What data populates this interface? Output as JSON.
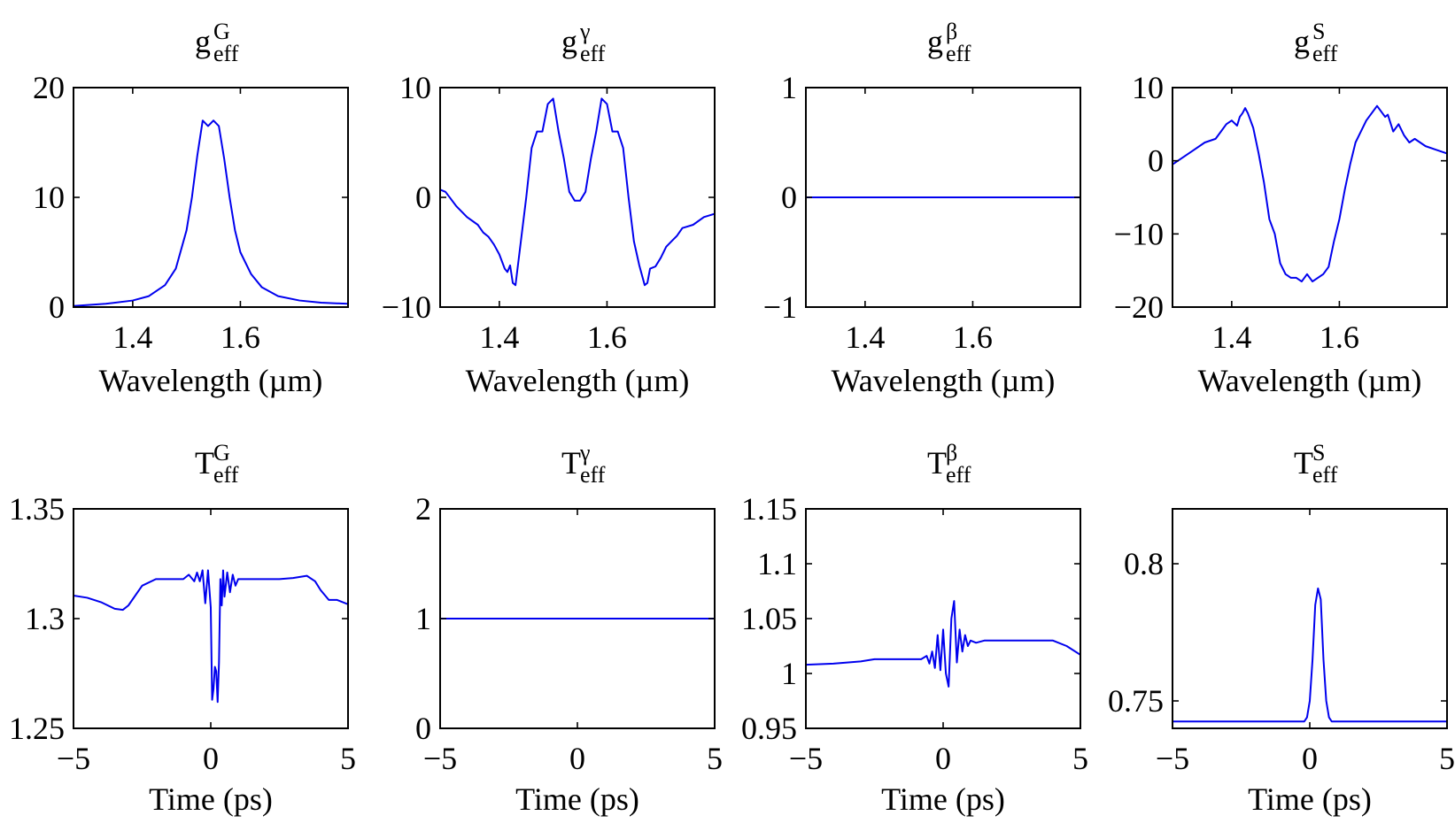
{
  "figure_title": "",
  "chart_data": [
    {
      "type": "line",
      "title": {
        "base": "g",
        "sup": "G",
        "sub": "eff"
      },
      "xlabel": "Wavelength (µm)",
      "ylabel": "",
      "xlim": [
        1.29,
        1.8
      ],
      "ylim": [
        0,
        20
      ],
      "xticks": [
        1.4,
        1.6
      ],
      "xtick_labels": [
        "1.4",
        "1.6"
      ],
      "yticks": [
        0,
        10,
        20
      ],
      "ytick_labels": [
        "0",
        "10",
        "20"
      ],
      "series": [
        {
          "name": "gG_eff",
          "color": "#0000ee",
          "x": [
            1.29,
            1.35,
            1.4,
            1.43,
            1.46,
            1.48,
            1.5,
            1.51,
            1.52,
            1.53,
            1.54,
            1.55,
            1.56,
            1.57,
            1.58,
            1.59,
            1.6,
            1.62,
            1.64,
            1.67,
            1.71,
            1.75,
            1.8
          ],
          "y": [
            0.1,
            0.3,
            0.6,
            1.0,
            2.0,
            3.5,
            7.0,
            10.0,
            13.8,
            17.0,
            16.5,
            17.0,
            16.5,
            13.5,
            10.0,
            7.0,
            5.0,
            3.0,
            1.8,
            1.0,
            0.6,
            0.4,
            0.3
          ]
        }
      ]
    },
    {
      "type": "line",
      "title": {
        "base": "g",
        "sup": "γ",
        "sub": "eff"
      },
      "xlabel": "Wavelength (µm)",
      "ylabel": "",
      "xlim": [
        1.29,
        1.8
      ],
      "ylim": [
        -10,
        10
      ],
      "xticks": [
        1.4,
        1.6
      ],
      "xtick_labels": [
        "1.4",
        "1.6"
      ],
      "yticks": [
        -10,
        0,
        10
      ],
      "ytick_labels": [
        "−10",
        "0",
        "10"
      ],
      "series": [
        {
          "name": "ggamma_eff",
          "color": "#0000ee",
          "x": [
            1.29,
            1.3,
            1.32,
            1.34,
            1.36,
            1.37,
            1.38,
            1.39,
            1.4,
            1.41,
            1.415,
            1.42,
            1.425,
            1.43,
            1.44,
            1.45,
            1.46,
            1.47,
            1.48,
            1.49,
            1.5,
            1.51,
            1.52,
            1.53,
            1.54,
            1.55,
            1.56,
            1.57,
            1.58,
            1.59,
            1.6,
            1.61,
            1.62,
            1.63,
            1.64,
            1.65,
            1.66,
            1.67,
            1.675,
            1.68,
            1.69,
            1.7,
            1.71,
            1.72,
            1.73,
            1.74,
            1.76,
            1.78,
            1.8
          ],
          "y": [
            0.7,
            0.5,
            -0.8,
            -1.8,
            -2.5,
            -3.2,
            -3.6,
            -4.3,
            -5.2,
            -6.5,
            -6.8,
            -6.2,
            -7.8,
            -8.0,
            -4.0,
            0.0,
            4.5,
            6.0,
            6.0,
            8.5,
            9.0,
            6.0,
            3.5,
            0.5,
            -0.3,
            -0.3,
            0.5,
            3.5,
            6.0,
            9.0,
            8.5,
            6.0,
            6.0,
            4.5,
            0.0,
            -4.0,
            -6.2,
            -8.0,
            -7.8,
            -6.5,
            -6.3,
            -5.5,
            -4.5,
            -4.0,
            -3.5,
            -2.8,
            -2.5,
            -1.8,
            -1.5
          ]
        }
      ]
    },
    {
      "type": "line",
      "title": {
        "base": "g",
        "sup": "β",
        "sub": "eff"
      },
      "xlabel": "Wavelength (µm)",
      "ylabel": "",
      "xlim": [
        1.29,
        1.8
      ],
      "ylim": [
        -1,
        1
      ],
      "xticks": [
        1.4,
        1.6
      ],
      "xtick_labels": [
        "1.4",
        "1.6"
      ],
      "yticks": [
        -1,
        0,
        1
      ],
      "ytick_labels": [
        "−1",
        "0",
        "1"
      ],
      "series": [
        {
          "name": "gbeta_eff",
          "color": "#0000ee",
          "x": [
            1.29,
            1.8
          ],
          "y": [
            0,
            0
          ]
        }
      ]
    },
    {
      "type": "line",
      "title": {
        "base": "g",
        "sup": "S",
        "sub": "eff"
      },
      "xlabel": "Wavelength (µm)",
      "ylabel": "",
      "xlim": [
        1.29,
        1.8
      ],
      "ylim": [
        -20,
        10
      ],
      "xticks": [
        1.4,
        1.6
      ],
      "xtick_labels": [
        "1.4",
        "1.6"
      ],
      "yticks": [
        -20,
        -10,
        0,
        10
      ],
      "ytick_labels": [
        "−20",
        "−10",
        "0",
        "10"
      ],
      "series": [
        {
          "name": "gS_eff",
          "color": "#0000ee",
          "x": [
            1.29,
            1.31,
            1.33,
            1.35,
            1.37,
            1.38,
            1.39,
            1.4,
            1.41,
            1.415,
            1.42,
            1.425,
            1.43,
            1.44,
            1.45,
            1.46,
            1.47,
            1.48,
            1.49,
            1.5,
            1.51,
            1.52,
            1.53,
            1.54,
            1.55,
            1.56,
            1.57,
            1.58,
            1.59,
            1.6,
            1.61,
            1.62,
            1.63,
            1.64,
            1.65,
            1.66,
            1.67,
            1.68,
            1.685,
            1.69,
            1.7,
            1.71,
            1.72,
            1.73,
            1.74,
            1.76,
            1.78,
            1.8
          ],
          "y": [
            -0.5,
            0.5,
            1.5,
            2.5,
            3.0,
            4.0,
            5.0,
            5.5,
            4.8,
            6.0,
            6.5,
            7.2,
            6.5,
            4.5,
            1.0,
            -3.0,
            -8.0,
            -10.0,
            -14.0,
            -15.5,
            -16.0,
            -16.0,
            -16.5,
            -15.5,
            -16.5,
            -16.0,
            -15.5,
            -14.5,
            -11.0,
            -8.0,
            -4.0,
            -0.5,
            2.5,
            4.0,
            5.5,
            6.5,
            7.5,
            6.5,
            6.0,
            6.3,
            4.0,
            5.0,
            3.5,
            2.5,
            3.0,
            2.0,
            1.5,
            1.0
          ]
        }
      ]
    },
    {
      "type": "line",
      "title": {
        "base": "T",
        "sup": "G",
        "sub": "eff"
      },
      "xlabel": "Time (ps)",
      "ylabel": "",
      "xlim": [
        -5,
        5
      ],
      "ylim": [
        1.25,
        1.35
      ],
      "xticks": [
        -5,
        0,
        5
      ],
      "xtick_labels": [
        "−5",
        "0",
        "5"
      ],
      "yticks": [
        1.25,
        1.3,
        1.35
      ],
      "ytick_labels": [
        "1.25",
        "1.3",
        "1.35"
      ],
      "series": [
        {
          "name": "TG_eff",
          "color": "#0000ee",
          "x": [
            -5.0,
            -4.5,
            -4.0,
            -3.5,
            -3.2,
            -3.0,
            -2.5,
            -2.0,
            -1.5,
            -1.0,
            -0.8,
            -0.6,
            -0.5,
            -0.4,
            -0.3,
            -0.2,
            -0.1,
            0.0,
            0.05,
            0.1,
            0.15,
            0.2,
            0.25,
            0.3,
            0.35,
            0.4,
            0.45,
            0.5,
            0.6,
            0.7,
            0.8,
            0.9,
            1.0,
            1.2,
            1.5,
            2.0,
            2.5,
            3.0,
            3.5,
            3.8,
            4.0,
            4.3,
            4.6,
            5.0
          ],
          "y": [
            1.3105,
            1.3095,
            1.3075,
            1.3045,
            1.304,
            1.306,
            1.315,
            1.318,
            1.318,
            1.318,
            1.32,
            1.317,
            1.321,
            1.317,
            1.322,
            1.307,
            1.322,
            1.305,
            1.263,
            1.268,
            1.278,
            1.276,
            1.262,
            1.28,
            1.318,
            1.306,
            1.322,
            1.31,
            1.321,
            1.312,
            1.32,
            1.315,
            1.318,
            1.318,
            1.318,
            1.318,
            1.318,
            1.3185,
            1.3195,
            1.317,
            1.313,
            1.3085,
            1.3085,
            1.3065
          ]
        }
      ]
    },
    {
      "type": "line",
      "title": {
        "base": "T",
        "sup": "γ",
        "sub": "eff"
      },
      "xlabel": "Time (ps)",
      "ylabel": "",
      "xlim": [
        -5,
        5
      ],
      "ylim": [
        0,
        2
      ],
      "xticks": [
        -5,
        0,
        5
      ],
      "xtick_labels": [
        "−5",
        "0",
        "5"
      ],
      "yticks": [
        0,
        1,
        2
      ],
      "ytick_labels": [
        "0",
        "1",
        "2"
      ],
      "series": [
        {
          "name": "Tgamma_eff",
          "color": "#0000ee",
          "x": [
            -5,
            5
          ],
          "y": [
            1,
            1
          ]
        }
      ]
    },
    {
      "type": "line",
      "title": {
        "base": "T",
        "sup": "β",
        "sub": "eff"
      },
      "xlabel": "Time (ps)",
      "ylabel": "",
      "xlim": [
        -5,
        5
      ],
      "ylim": [
        0.95,
        1.15
      ],
      "xticks": [
        -5,
        0,
        5
      ],
      "xtick_labels": [
        "−5",
        "0",
        "5"
      ],
      "yticks": [
        0.95,
        1.0,
        1.05,
        1.1,
        1.15
      ],
      "ytick_labels": [
        "0.95",
        "1",
        "1.05",
        "1.1",
        "1.15"
      ],
      "series": [
        {
          "name": "Tbeta_eff",
          "color": "#0000ee",
          "x": [
            -5.0,
            -4.0,
            -3.0,
            -2.5,
            -1.5,
            -1.0,
            -0.8,
            -0.6,
            -0.5,
            -0.4,
            -0.3,
            -0.2,
            -0.1,
            0.0,
            0.1,
            0.2,
            0.3,
            0.4,
            0.5,
            0.6,
            0.7,
            0.8,
            0.9,
            1.0,
            1.2,
            1.5,
            2.0,
            3.0,
            3.5,
            4.0,
            4.5,
            5.0
          ],
          "y": [
            1.008,
            1.009,
            1.011,
            1.013,
            1.013,
            1.013,
            1.013,
            1.016,
            1.009,
            1.02,
            1.005,
            1.035,
            1.003,
            1.04,
            1.0,
            0.988,
            1.05,
            1.066,
            1.01,
            1.04,
            1.02,
            1.035,
            1.025,
            1.03,
            1.028,
            1.03,
            1.03,
            1.03,
            1.03,
            1.03,
            1.025,
            1.017
          ]
        }
      ]
    },
    {
      "type": "line",
      "title": {
        "base": "T",
        "sup": "S",
        "sub": "eff"
      },
      "xlabel": "Time (ps)",
      "ylabel": "",
      "xlim": [
        -5,
        5
      ],
      "ylim": [
        0.74,
        0.82
      ],
      "xticks": [
        -5,
        0,
        5
      ],
      "xtick_labels": [
        "−5",
        "0",
        "5"
      ],
      "yticks": [
        0.75,
        0.8
      ],
      "ytick_labels": [
        "0.75",
        "0.8"
      ],
      "series": [
        {
          "name": "TS_eff",
          "color": "#0000ee",
          "x": [
            -5,
            -1,
            -0.2,
            -0.1,
            0.0,
            0.1,
            0.2,
            0.3,
            0.4,
            0.5,
            0.6,
            0.7,
            0.8,
            1.0,
            5.0
          ],
          "y": [
            0.7425,
            0.7425,
            0.7425,
            0.744,
            0.75,
            0.765,
            0.785,
            0.791,
            0.787,
            0.765,
            0.75,
            0.744,
            0.7425,
            0.7425,
            0.7425
          ]
        }
      ]
    }
  ]
}
